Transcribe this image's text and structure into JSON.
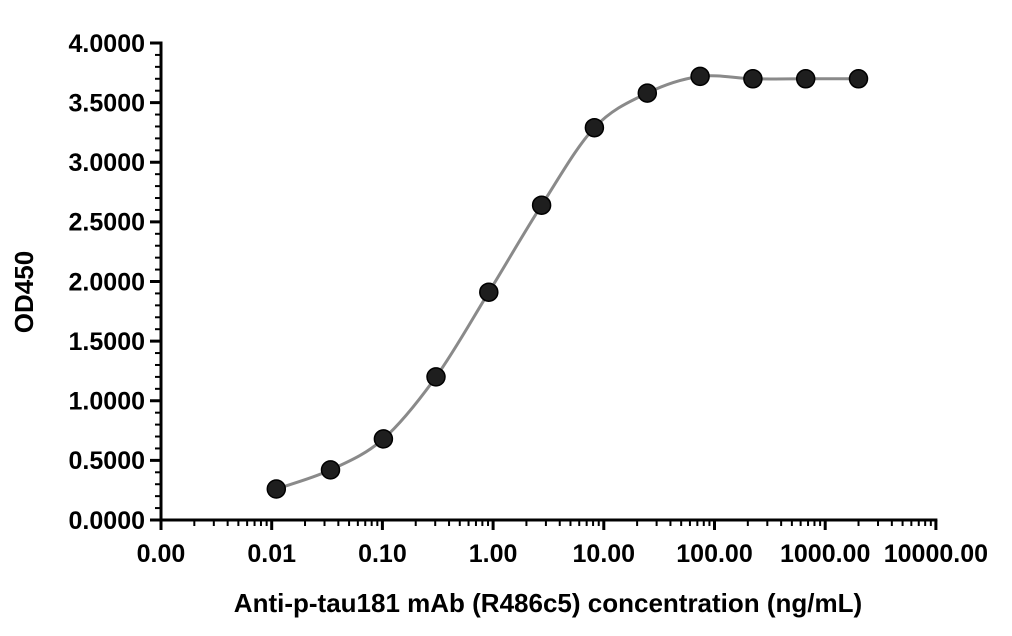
{
  "chart_data": {
    "type": "line",
    "title": "",
    "xlabel": "Anti-p-tau181 mAb (R486c5) concentration (ng/mL)",
    "ylabel": "OD450",
    "x_scale": "log",
    "grid": false,
    "legend": "none",
    "x_axis": {
      "min": 0.001,
      "max": 10000,
      "tick_values": [
        0.001,
        0.01,
        0.1,
        1,
        10,
        100,
        1000,
        10000
      ],
      "tick_labels": [
        "0.00",
        "0.01",
        "0.10",
        "1.00",
        "10.00",
        "100.00",
        "1000.00",
        "10000.00"
      ],
      "minor_ticks": "log-decade-2-9"
    },
    "y_axis": {
      "min": 0,
      "max": 4,
      "major_step": 0.5,
      "minor_step": 0.1,
      "tick_values": [
        0,
        0.5,
        1,
        1.5,
        2,
        2.5,
        3,
        3.5,
        4
      ],
      "tick_labels": [
        "0.0000",
        "0.5000",
        "1.0000",
        "1.5000",
        "2.0000",
        "2.5000",
        "3.0000",
        "3.5000",
        "4.0000"
      ]
    },
    "series": [
      {
        "marker": "circle",
        "marker_color": "#1e1e1e",
        "marker_edge_color": "#000000",
        "line_color": "#8a8a8a",
        "points": [
          [
            0.011,
            0.26
          ],
          [
            0.034,
            0.42
          ],
          [
            0.102,
            0.68
          ],
          [
            0.305,
            1.2
          ],
          [
            0.915,
            1.91
          ],
          [
            2.74,
            2.64
          ],
          [
            8.23,
            3.29
          ],
          [
            24.69,
            3.58
          ],
          [
            74.07,
            3.72
          ],
          [
            222.2,
            3.7
          ],
          [
            666.7,
            3.7
          ],
          [
            2000,
            3.7
          ]
        ]
      }
    ]
  },
  "colors": {
    "background": "#ffffff",
    "axis": "#000000",
    "text": "#000000",
    "curve": "#8a8a8a",
    "marker": "#1e1e1e"
  }
}
